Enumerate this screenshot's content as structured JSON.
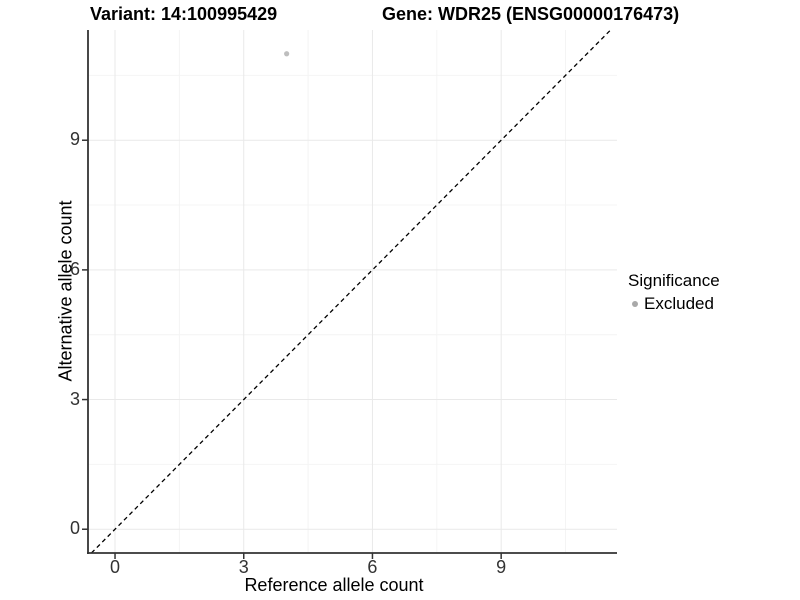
{
  "chart_data": {
    "type": "scatter",
    "titles": {
      "variant": "Variant: 14:100995429",
      "gene": "Gene: WDR25 (ENSG00000176473)"
    },
    "xlabel": "Reference allele count",
    "ylabel": "Alternative allele count",
    "xlim": [
      -0.63,
      11.7
    ],
    "ylim": [
      -0.55,
      11.55
    ],
    "x_ticks": [
      0,
      3,
      6,
      9
    ],
    "y_ticks": [
      0,
      3,
      6,
      9
    ],
    "x_minor_ticks": [
      1.5,
      4.5,
      7.5,
      10.5
    ],
    "y_minor_ticks": [
      1.5,
      4.5,
      7.5,
      10.5
    ],
    "grid": "major+minor",
    "points": [
      {
        "x": 4,
        "y": 11,
        "series": "Excluded"
      }
    ],
    "point_color": "#bebebe",
    "point_radius": 2.6,
    "identity_line": {
      "slope": 1,
      "intercept": 0,
      "style": "dashed",
      "color": "#000000"
    },
    "legend": {
      "title": "Significance",
      "position": "right",
      "items": [
        {
          "label": "Excluded",
          "color": "#a9a9a9"
        }
      ]
    }
  },
  "colors": {
    "background": "#ffffff",
    "axis_line": "#333333",
    "tick_mark": "#333333",
    "tick_label": "#333333",
    "grid_major": "#e9e9e9",
    "grid_minor": "#f4f4f4"
  }
}
